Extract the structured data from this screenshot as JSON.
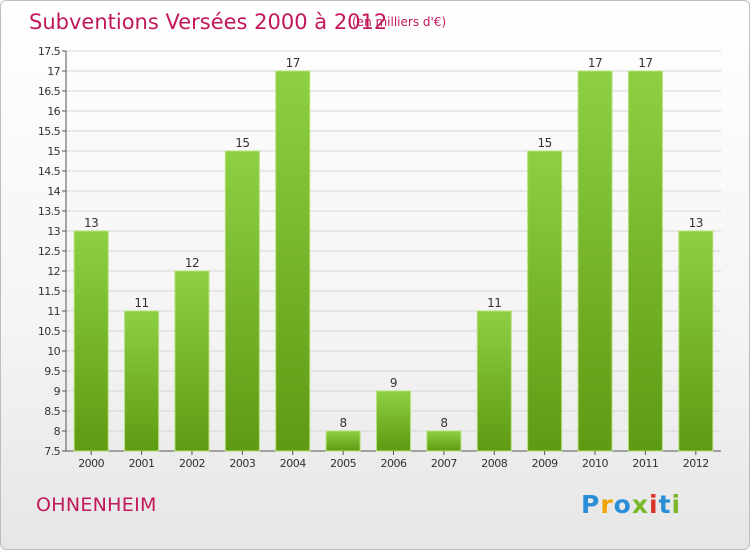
{
  "title": "Subventions Versées 2000 à 2012",
  "subtitle": "(en milliers d'€)",
  "town": "OHNENHEIM",
  "logo": {
    "text": "Proxiti",
    "letters": [
      {
        "ch": "P",
        "color": "#2a8fd6"
      },
      {
        "ch": "r",
        "color": "#f0a500"
      },
      {
        "ch": "o",
        "color": "#2a8fd6"
      },
      {
        "ch": "x",
        "color": "#7bb829"
      },
      {
        "ch": "i",
        "color": "#d8342a"
      },
      {
        "ch": "t",
        "color": "#2a8fd6"
      },
      {
        "ch": "i",
        "color": "#7bb829"
      }
    ]
  },
  "colors": {
    "accent": "#c2185b",
    "bar_top": "#8ed043",
    "bar_bottom": "#5e9a12",
    "grid": "#d6d6d6",
    "axis": "#555555"
  },
  "chart_data": {
    "type": "bar",
    "title": "Subventions Versées 2000 à 2012",
    "subtitle": "(en milliers d'€)",
    "categories": [
      "2000",
      "2001",
      "2002",
      "2003",
      "2004",
      "2005",
      "2006",
      "2007",
      "2008",
      "2009",
      "2010",
      "2011",
      "2012"
    ],
    "values": [
      13,
      11,
      12,
      15,
      17,
      8,
      9,
      8,
      11,
      15,
      17,
      17,
      13
    ],
    "ylim": [
      7.5,
      17.5
    ],
    "ytick_step": 0.5,
    "yticks": [
      "7.5",
      "8",
      "8.5",
      "9",
      "9.5",
      "10",
      "10.5",
      "11",
      "11.5",
      "12",
      "12.5",
      "13",
      "13.5",
      "14",
      "14.5",
      "15",
      "15.5",
      "16",
      "16.5",
      "17",
      "17.5"
    ],
    "grid": true,
    "legend": "none"
  }
}
